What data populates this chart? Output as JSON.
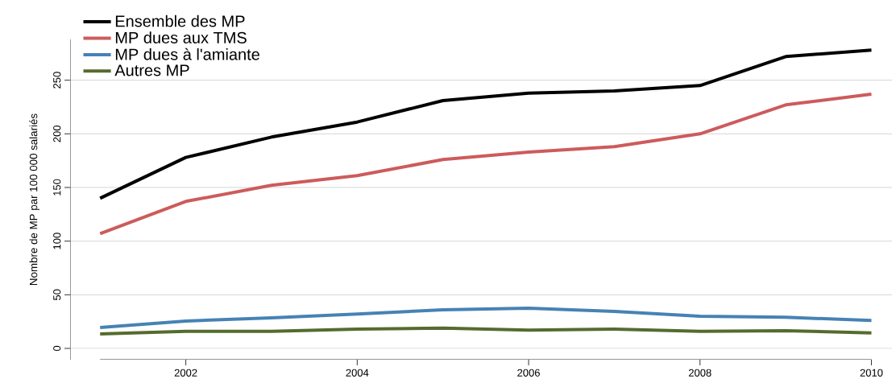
{
  "chart_data": {
    "type": "line",
    "ylabel": "Nombre de MP par 100 000 salariés",
    "x": [
      2001,
      2002,
      2003,
      2004,
      2005,
      2006,
      2007,
      2008,
      2009,
      2010
    ],
    "series": [
      {
        "name": "Ensemble des MP",
        "color": "#000000",
        "values": [
          140,
          178,
          197,
          211,
          231,
          238,
          240,
          245,
          272,
          278
        ]
      },
      {
        "name": "MP dues aux TMS",
        "color": "#cd5b5b",
        "values": [
          107,
          137,
          152,
          161,
          176,
          183,
          188,
          200,
          227,
          237
        ]
      },
      {
        "name": "MP dues à l'amiante",
        "color": "#4682b4",
        "values": [
          19.5,
          25.5,
          28.5,
          32,
          36,
          37.5,
          34.5,
          30,
          29,
          26
        ]
      },
      {
        "name": "Autres MP",
        "color": "#556b2f",
        "values": [
          13.5,
          16,
          16,
          18,
          19,
          17,
          18,
          16,
          16.5,
          14.5
        ]
      }
    ],
    "xlim": [
      2000.65,
      2010.24
    ],
    "ylim": [
      -10.5,
      288
    ],
    "xticks": [
      2002,
      2004,
      2006,
      2008,
      2010
    ],
    "yticks": [
      0,
      50,
      100,
      150,
      200,
      250
    ],
    "grid": "y",
    "legend": "top left",
    "marker": "none",
    "line_style": "solid"
  }
}
